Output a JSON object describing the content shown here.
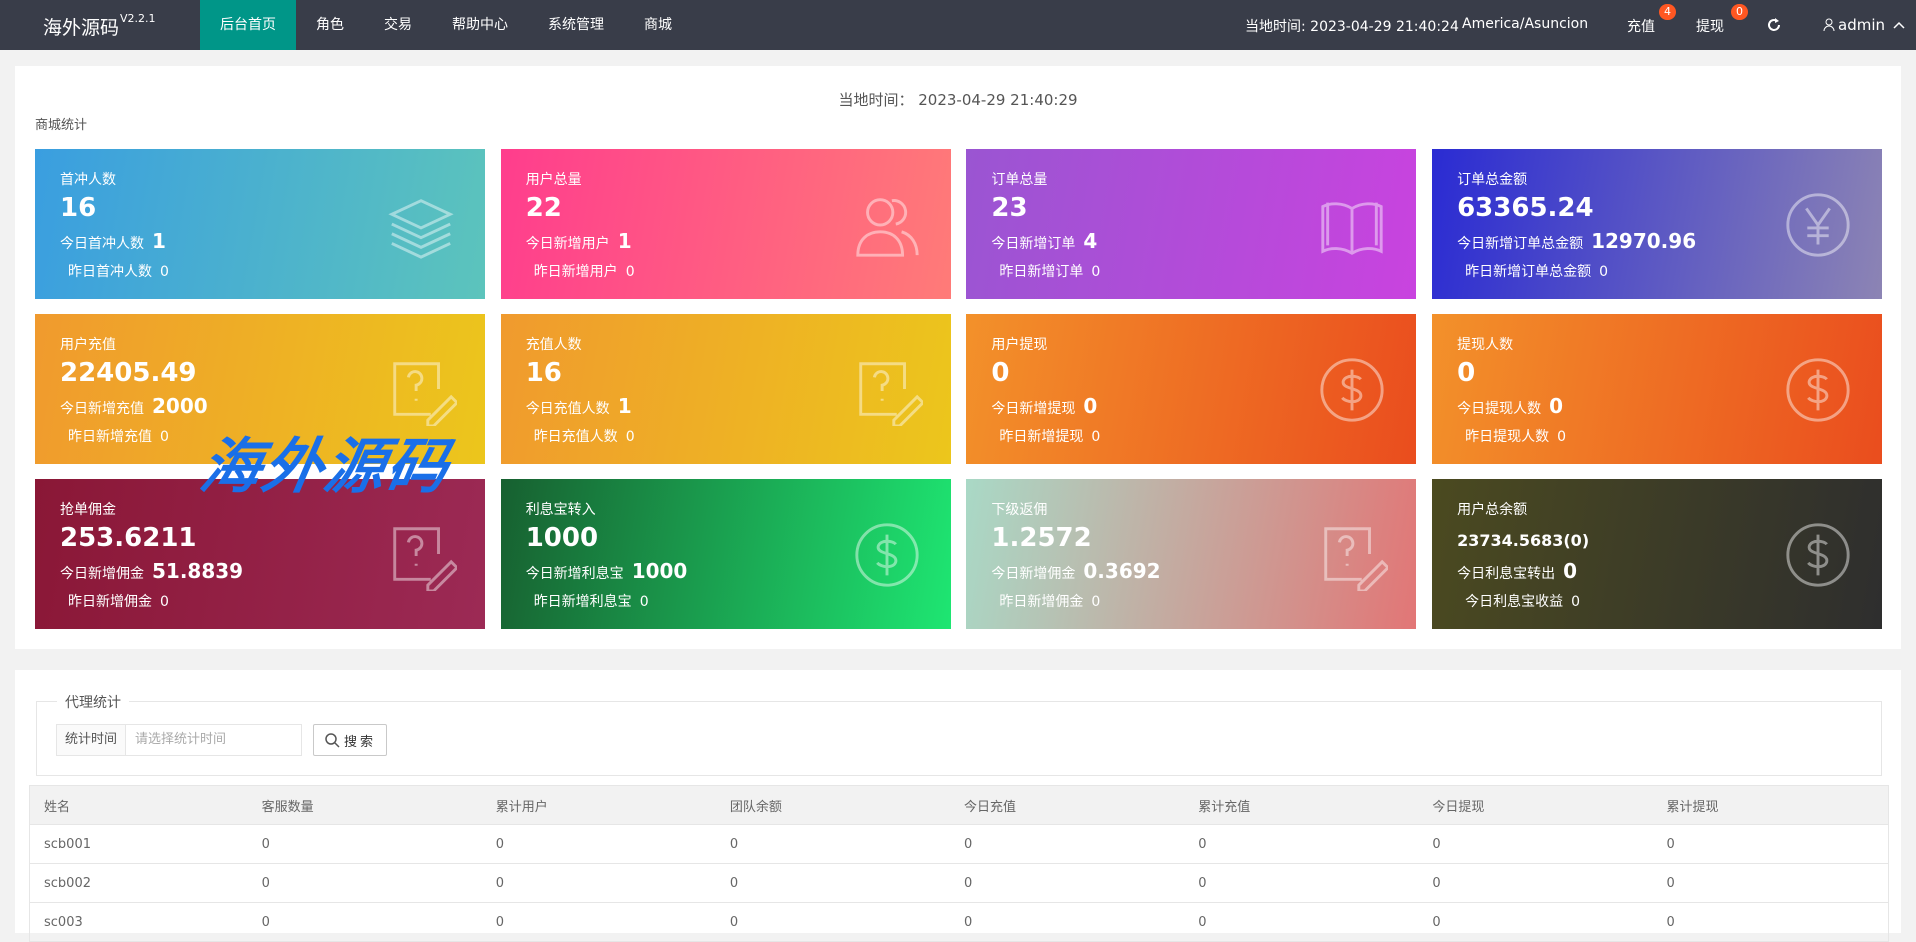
{
  "nav": {
    "logo": "海外源码",
    "version": "V2.2.1",
    "menu": [
      "后台首页",
      "角色",
      "交易",
      "帮助中心",
      "系统管理",
      "商城"
    ],
    "time_label": "当地时间:",
    "time": "2023-04-29 21:40:24",
    "timezone": "America/Asuncion",
    "recharge": "充值",
    "recharge_badge": "4",
    "withdraw": "提现",
    "withdraw_badge": "0",
    "user": "admin"
  },
  "mall": {
    "time_label": "当地时间：",
    "time": "2023-04-29 21:40:29",
    "title": "商城统计",
    "cards": [
      {
        "title": "首冲人数",
        "value": "16",
        "today_label": "今日首冲人数",
        "today_value": "1",
        "yesterday_label": "昨日首冲人数",
        "yesterday_value": "0"
      },
      {
        "title": "用户总量",
        "value": "22",
        "today_label": "今日新增用户",
        "today_value": "1",
        "yesterday_label": "昨日新增用户",
        "yesterday_value": "0"
      },
      {
        "title": "订单总量",
        "value": "23",
        "today_label": "今日新增订单",
        "today_value": "4",
        "yesterday_label": "昨日新增订单",
        "yesterday_value": "0"
      },
      {
        "title": "订单总金额",
        "value": "63365.24",
        "today_label": "今日新增订单总金额",
        "today_value": "12970.96",
        "yesterday_label": "昨日新增订单总金额",
        "yesterday_value": "0"
      },
      {
        "title": "用户充值",
        "value": "22405.49",
        "today_label": "今日新增充值",
        "today_value": "2000",
        "yesterday_label": "昨日新增充值",
        "yesterday_value": "0"
      },
      {
        "title": "充值人数",
        "value": "16",
        "today_label": "今日充值人数",
        "today_value": "1",
        "yesterday_label": "昨日充值人数",
        "yesterday_value": "0"
      },
      {
        "title": "用户提现",
        "value": "0",
        "today_label": "今日新增提现",
        "today_value": "0",
        "yesterday_label": "昨日新增提现",
        "yesterday_value": "0"
      },
      {
        "title": "提现人数",
        "value": "0",
        "today_label": "今日提现人数",
        "today_value": "0",
        "yesterday_label": "昨日提现人数",
        "yesterday_value": "0"
      },
      {
        "title": "抢单佣金",
        "value": "253.6211",
        "today_label": "今日新增佣金",
        "today_value": "51.8839",
        "yesterday_label": "昨日新增佣金",
        "yesterday_value": "0"
      },
      {
        "title": "利息宝转入",
        "value": "1000",
        "today_label": "今日新增利息宝",
        "today_value": "1000",
        "yesterday_label": "昨日新增利息宝",
        "yesterday_value": "0"
      },
      {
        "title": "下级返佣",
        "value": "1.2572",
        "today_label": "今日新增佣金",
        "today_value": "0.3692",
        "yesterday_label": "昨日新增佣金",
        "yesterday_value": "0"
      },
      {
        "title": "用户总余额",
        "value": "23734.5683(0)",
        "today_label": "今日利息宝转出",
        "today_value": "0",
        "yesterday_label": "今日利息宝收益",
        "yesterday_value": "0"
      }
    ]
  },
  "watermark": "海外源码",
  "agent": {
    "legend": "代理统计",
    "field_label": "统计时间",
    "placeholder": "请选择统计时间",
    "button": "搜索",
    "table": {
      "columns": [
        "姓名",
        "客服数量",
        "累计用户",
        "团队余额",
        "今日充值",
        "累计充值",
        "今日提现",
        "累计提现"
      ],
      "rows": [
        [
          "scb001",
          "0",
          "0",
          "0",
          "0",
          "0",
          "0",
          "0"
        ],
        [
          "scb002",
          "0",
          "0",
          "0",
          "0",
          "0",
          "0",
          "0"
        ],
        [
          "sc003",
          "0",
          "0",
          "0",
          "0",
          "0",
          "0",
          "0"
        ]
      ]
    }
  }
}
